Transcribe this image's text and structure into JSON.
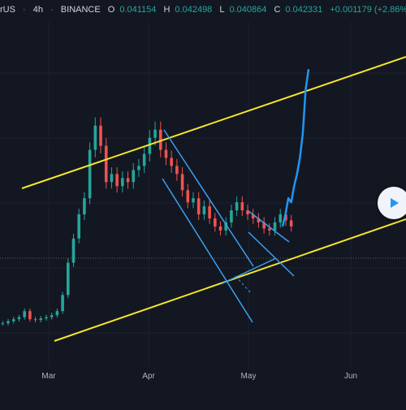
{
  "header": {
    "symbol": "rUS",
    "interval": "4h",
    "exchange": "BINANCE",
    "o_key": "O",
    "o_val": "0.041154",
    "h_key": "H",
    "h_val": "0.042498",
    "l_key": "L",
    "l_val": "0.040864",
    "c_key": "C",
    "c_val": "0.042331",
    "change": "+0.001179 (+2.86%)"
  },
  "play_button": {
    "icon": "play-icon"
  },
  "colors": {
    "background": "#131722",
    "up": "#26a69a",
    "down": "#ef5350",
    "channel": "#f5e72a",
    "trend": "#3aa0f0",
    "projection": "#2196f3",
    "grid": "#1e2230"
  },
  "chart_data": {
    "type": "line",
    "x_tick_labels": [
      "Mar",
      "Apr",
      "May",
      "Jun"
    ],
    "series": [
      {
        "values": [
          0.019,
          0.0195,
          0.02,
          0.0205,
          0.022,
          0.02,
          0.0198,
          0.0202,
          0.0205,
          0.021,
          0.022,
          0.026,
          0.034,
          0.04,
          0.046,
          0.05,
          0.062,
          0.068,
          0.063,
          0.054,
          0.056,
          0.053,
          0.055,
          0.054,
          0.057,
          0.058,
          0.061,
          0.065,
          0.067,
          0.062,
          0.06,
          0.058,
          0.056,
          0.052,
          0.049,
          0.05,
          0.046,
          0.048,
          0.045,
          0.043,
          0.042,
          0.044,
          0.047,
          0.049,
          0.047,
          0.046,
          0.045,
          0.044,
          0.0425,
          0.042,
          0.044,
          0.046,
          0.0445,
          0.043
        ]
      }
    ],
    "projection": [
      0.043,
      0.046,
      0.05,
      0.049,
      0.053,
      0.056,
      0.06,
      0.066,
      0.077,
      0.082
    ]
  }
}
